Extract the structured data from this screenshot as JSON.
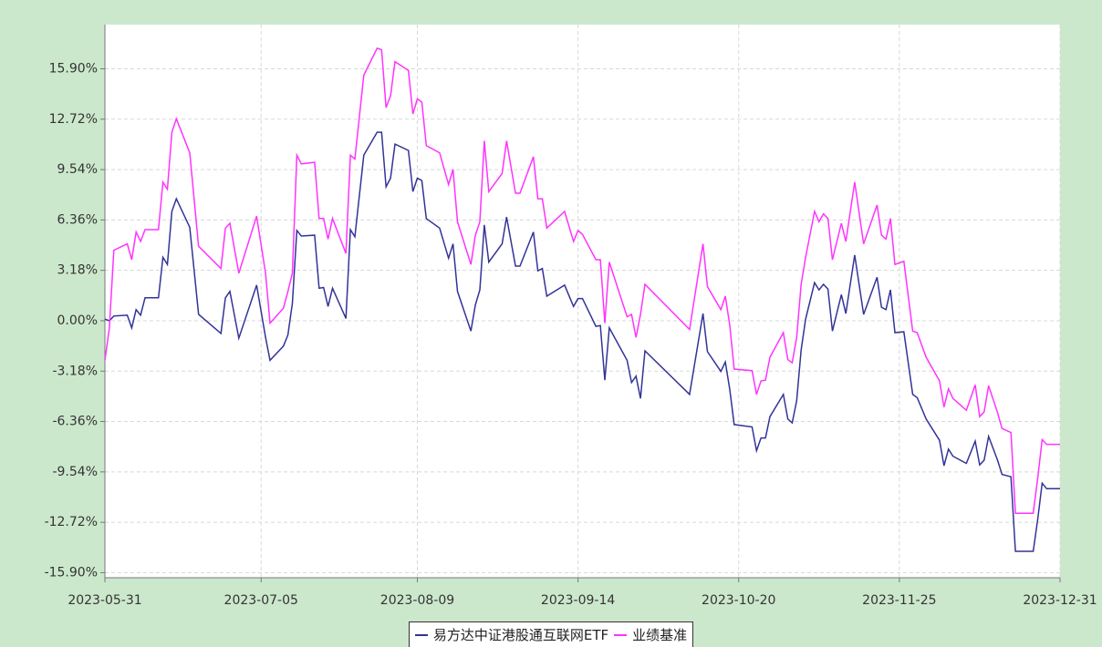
{
  "chart_data": {
    "type": "line",
    "x": [
      "2023-05-31",
      "2023-06-01",
      "2023-06-02",
      "2023-06-05",
      "2023-06-06",
      "2023-06-07",
      "2023-06-08",
      "2023-06-09",
      "2023-06-12",
      "2023-06-13",
      "2023-06-14",
      "2023-06-15",
      "2023-06-16",
      "2023-06-19",
      "2023-06-21",
      "2023-06-26",
      "2023-06-27",
      "2023-06-28",
      "2023-06-30",
      "2023-07-04",
      "2023-07-06",
      "2023-07-07",
      "2023-07-10",
      "2023-07-11",
      "2023-07-12",
      "2023-07-13",
      "2023-07-14",
      "2023-07-17",
      "2023-07-18",
      "2023-07-19",
      "2023-07-20",
      "2023-07-21",
      "2023-07-24",
      "2023-07-25",
      "2023-07-26",
      "2023-07-28",
      "2023-07-31",
      "2023-08-01",
      "2023-08-02",
      "2023-08-03",
      "2023-08-04",
      "2023-08-07",
      "2023-08-08",
      "2023-08-09",
      "2023-08-10",
      "2023-08-11",
      "2023-08-14",
      "2023-08-16",
      "2023-08-17",
      "2023-08-18",
      "2023-08-21",
      "2023-08-22",
      "2023-08-23",
      "2023-08-24",
      "2023-08-25",
      "2023-08-28",
      "2023-08-29",
      "2023-08-31",
      "2023-09-01",
      "2023-09-04",
      "2023-09-05",
      "2023-09-06",
      "2023-09-07",
      "2023-09-11",
      "2023-09-13",
      "2023-09-14",
      "2023-09-15",
      "2023-09-18",
      "2023-09-19",
      "2023-09-20",
      "2023-09-21",
      "2023-09-25",
      "2023-09-26",
      "2023-09-27",
      "2023-09-28",
      "2023-09-29",
      "2023-10-09",
      "2023-10-12",
      "2023-10-13",
      "2023-10-16",
      "2023-10-17",
      "2023-10-18",
      "2023-10-19",
      "2023-10-23",
      "2023-10-24",
      "2023-10-25",
      "2023-10-26",
      "2023-10-27",
      "2023-10-30",
      "2023-10-31",
      "2023-11-01",
      "2023-11-02",
      "2023-11-03",
      "2023-11-04",
      "2023-11-06",
      "2023-11-07",
      "2023-11-08",
      "2023-11-09",
      "2023-11-10",
      "2023-11-12",
      "2023-11-13",
      "2023-11-15",
      "2023-11-17",
      "2023-11-20",
      "2023-11-21",
      "2023-11-22",
      "2023-11-23",
      "2023-11-24",
      "2023-11-26",
      "2023-11-28",
      "2023-11-29",
      "2023-12-01",
      "2023-12-04",
      "2023-12-05",
      "2023-12-06",
      "2023-12-07",
      "2023-12-10",
      "2023-12-12",
      "2023-12-13",
      "2023-12-14",
      "2023-12-15",
      "2023-12-17",
      "2023-12-18",
      "2023-12-20",
      "2023-12-21",
      "2023-12-25",
      "2023-12-26",
      "2023-12-27",
      "2023-12-28",
      "2023-12-31"
    ],
    "series": [
      {
        "name": "易方达中证港股通互联网ETF",
        "color": "#333399",
        "values": [
          0.1,
          0,
          0.3,
          0.35,
          -0.45,
          0.7,
          0.35,
          1.45,
          1.45,
          4.0,
          3.55,
          6.9,
          7.7,
          5.9,
          0.4,
          -0.8,
          1.45,
          1.85,
          -1.1,
          2.25,
          -1.05,
          -2.5,
          -1.6,
          -0.9,
          1.1,
          5.7,
          5.35,
          5.4,
          2.05,
          2.1,
          0.9,
          2.05,
          0.15,
          5.75,
          5.3,
          10.45,
          11.9,
          11.9,
          8.45,
          9.0,
          11.15,
          10.75,
          8.15,
          9.0,
          8.85,
          6.45,
          5.85,
          3.95,
          4.85,
          1.85,
          -0.65,
          1.0,
          1.95,
          6.05,
          3.7,
          4.85,
          6.55,
          3.45,
          3.45,
          5.6,
          3.15,
          3.3,
          1.55,
          2.25,
          0.9,
          1.4,
          1.4,
          -0.35,
          -0.3,
          -3.75,
          -0.45,
          -2.5,
          -3.9,
          -3.5,
          -4.9,
          -1.9,
          -4.65,
          0.45,
          -1.95,
          -3.2,
          -2.6,
          -4.35,
          -6.55,
          -6.7,
          -8.2,
          -7.4,
          -7.4,
          -6.05,
          -4.65,
          -6.2,
          -6.45,
          -5.05,
          -1.85,
          0.1,
          2.4,
          1.95,
          2.3,
          2.0,
          -0.65,
          1.65,
          0.45,
          4.15,
          0.4,
          2.75,
          0.85,
          0.7,
          1.95,
          -0.75,
          -0.7,
          -4.65,
          -4.85,
          -6.2,
          -7.55,
          -9.15,
          -8.1,
          -8.55,
          -9.0,
          -7.6,
          -9.1,
          -8.8,
          -7.3,
          -8.8,
          -9.7,
          -9.85,
          -14.55,
          -14.55,
          -12.55,
          -10.25,
          -10.6,
          -10.6
        ]
      },
      {
        "name": "业绩基准",
        "color": "#ff33ff",
        "values": [
          -2.5,
          -0.45,
          4.45,
          4.85,
          3.85,
          5.6,
          5.0,
          5.75,
          5.75,
          8.75,
          8.3,
          11.9,
          12.75,
          10.6,
          4.7,
          3.3,
          5.85,
          6.15,
          3.0,
          6.6,
          3.0,
          -0.15,
          0.8,
          1.85,
          3.0,
          10.45,
          9.9,
          10.0,
          6.45,
          6.45,
          5.15,
          6.45,
          4.25,
          10.45,
          10.2,
          15.5,
          17.2,
          17.1,
          13.45,
          14.2,
          16.35,
          15.8,
          13.05,
          14.0,
          13.8,
          11.05,
          10.6,
          8.6,
          9.55,
          6.25,
          3.55,
          5.4,
          6.25,
          11.35,
          8.15,
          9.3,
          11.35,
          8.05,
          8.05,
          10.35,
          7.7,
          7.7,
          5.85,
          6.9,
          5.0,
          5.7,
          5.45,
          3.85,
          3.85,
          -0.15,
          3.7,
          0.25,
          0.4,
          -1.05,
          0.4,
          2.3,
          -0.55,
          4.85,
          2.15,
          0.7,
          1.55,
          -0.3,
          -3.05,
          -3.15,
          -4.65,
          -3.8,
          -3.75,
          -2.3,
          -0.75,
          -2.45,
          -2.65,
          -1.05,
          2.3,
          4.0,
          6.9,
          6.25,
          6.75,
          6.45,
          3.85,
          6.15,
          5.0,
          8.75,
          4.85,
          7.3,
          5.4,
          5.15,
          6.45,
          3.55,
          3.75,
          -0.65,
          -0.75,
          -2.3,
          -3.8,
          -5.45,
          -4.3,
          -4.9,
          -5.65,
          -4.05,
          -6.05,
          -5.75,
          -4.1,
          -5.8,
          -6.8,
          -7.05,
          -12.15,
          -12.15,
          -9.95,
          -7.5,
          -7.8,
          -7.8
        ]
      }
    ],
    "xlim": [
      "2023-05-31",
      "2023-12-31"
    ],
    "xticks": [
      "2023-05-31",
      "2023-07-05",
      "2023-08-09",
      "2023-09-14",
      "2023-10-20",
      "2023-11-25",
      "2023-12-31"
    ],
    "ylim": [
      -16.22,
      18.69
    ],
    "yticks": [
      {
        "value": -15.9,
        "label": "-15.90%"
      },
      {
        "value": -12.72,
        "label": "-12.72%"
      },
      {
        "value": -9.54,
        "label": "-9.54%"
      },
      {
        "value": -6.36,
        "label": "-6.36%"
      },
      {
        "value": -3.18,
        "label": "-3.18%"
      },
      {
        "value": 0,
        "label": "0.00%"
      },
      {
        "value": 3.18,
        "label": "3.18%"
      },
      {
        "value": 6.36,
        "label": "6.36%"
      },
      {
        "value": 9.54,
        "label": "9.54%"
      },
      {
        "value": 12.72,
        "label": "12.72%"
      },
      {
        "value": 15.9,
        "label": "15.90%"
      }
    ],
    "grid": true
  }
}
